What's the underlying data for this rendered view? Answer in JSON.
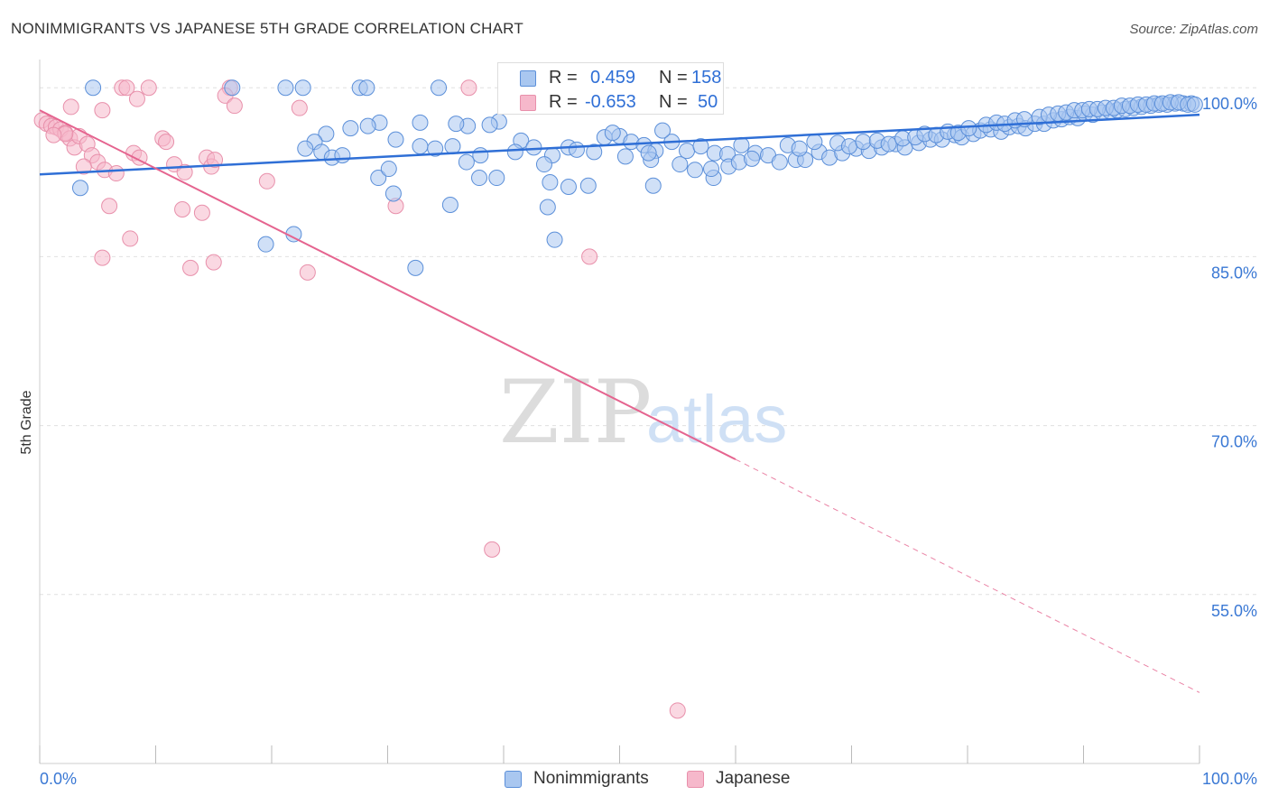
{
  "title": "NONIMMIGRANTS VS JAPANESE 5TH GRADE CORRELATION CHART",
  "source": "Source: ZipAtlas.com",
  "watermark": {
    "zip": "ZIP",
    "atlas": "atlas"
  },
  "legend_top": {
    "rows": [
      {
        "r_label": "R =",
        "r_value": "0.459",
        "n_label": "N =",
        "n_value": "158"
      },
      {
        "r_label": "R =",
        "r_value": "-0.653",
        "n_label": "N =",
        "n_value": "50"
      }
    ]
  },
  "legend_bottom": {
    "items": [
      "Nonimmigrants",
      "Japanese"
    ]
  },
  "colors": {
    "blue_fill": "#a9c7f0",
    "blue_stroke": "#5b8fd9",
    "blue_line": "#2f6fd6",
    "pink_fill": "#f6b8cb",
    "pink_stroke": "#e890ab",
    "pink_line": "#e5648f",
    "tick_text": "#3a78d4",
    "grid": "#e0e0e0"
  },
  "chart_data": {
    "type": "scatter",
    "title": "NONIMMIGRANTS VS JAPANESE 5TH GRADE CORRELATION CHART",
    "xlabel": "",
    "ylabel": "5th Grade",
    "xlim": [
      0,
      100
    ],
    "ylim": [
      40,
      102.5
    ],
    "x_tick_labels": [
      "0.0%",
      "100.0%"
    ],
    "y_ticks": [
      100,
      85,
      70,
      55
    ],
    "y_tick_labels": [
      "100.0%",
      "85.0%",
      "70.0%",
      "55.0%"
    ],
    "grid": true,
    "legend_position": "bottom",
    "series": [
      {
        "name": "Nonimmigrants",
        "r": 0.459,
        "n": 158,
        "trend": {
          "x0": 0,
          "y0": 92.3,
          "x1": 100,
          "y1": 97.6
        },
        "points": [
          [
            4.6,
            100
          ],
          [
            16.6,
            100
          ],
          [
            21.2,
            100
          ],
          [
            22.7,
            100
          ],
          [
            27.6,
            100
          ],
          [
            28.2,
            100
          ],
          [
            34.4,
            100
          ],
          [
            39.6,
            97.0
          ],
          [
            38.8,
            96.7
          ],
          [
            36.9,
            96.6
          ],
          [
            35.9,
            96.8
          ],
          [
            32.8,
            96.9
          ],
          [
            29.3,
            96.9
          ],
          [
            28.3,
            96.6
          ],
          [
            26.8,
            96.4
          ],
          [
            24.7,
            95.9
          ],
          [
            23.7,
            95.2
          ],
          [
            22.9,
            94.6
          ],
          [
            24.3,
            94.3
          ],
          [
            25.2,
            93.8
          ],
          [
            26.1,
            94.0
          ],
          [
            30.7,
            95.4
          ],
          [
            32.8,
            94.8
          ],
          [
            34.1,
            94.6
          ],
          [
            35.6,
            94.8
          ],
          [
            38.0,
            94.0
          ],
          [
            41.5,
            95.3
          ],
          [
            42.6,
            94.7
          ],
          [
            44.2,
            94.0
          ],
          [
            45.6,
            94.7
          ],
          [
            48.7,
            95.6
          ],
          [
            50.0,
            95.7
          ],
          [
            51.0,
            95.2
          ],
          [
            49.4,
            96.0
          ],
          [
            52.1,
            94.9
          ],
          [
            53.1,
            94.4
          ],
          [
            54.5,
            95.2
          ],
          [
            55.8,
            94.4
          ],
          [
            57.0,
            94.8
          ],
          [
            58.2,
            94.2
          ],
          [
            59.3,
            94.1
          ],
          [
            60.5,
            94.9
          ],
          [
            61.7,
            94.2
          ],
          [
            62.8,
            94.0
          ],
          [
            63.8,
            93.4
          ],
          [
            65.2,
            93.6
          ],
          [
            66.0,
            93.6
          ],
          [
            67.2,
            94.3
          ],
          [
            68.1,
            93.8
          ],
          [
            69.2,
            94.2
          ],
          [
            70.4,
            94.6
          ],
          [
            71.5,
            94.4
          ],
          [
            72.6,
            94.7
          ],
          [
            73.8,
            95.0
          ],
          [
            74.6,
            94.7
          ],
          [
            75.8,
            95.1
          ],
          [
            76.8,
            95.4
          ],
          [
            77.8,
            95.4
          ],
          [
            78.9,
            95.8
          ],
          [
            79.5,
            95.6
          ],
          [
            80.5,
            95.9
          ],
          [
            81.1,
            96.2
          ],
          [
            82.0,
            96.3
          ],
          [
            82.9,
            96.1
          ],
          [
            83.6,
            96.5
          ],
          [
            84.4,
            96.6
          ],
          [
            85.0,
            96.4
          ],
          [
            85.8,
            96.8
          ],
          [
            86.6,
            96.8
          ],
          [
            87.4,
            97.1
          ],
          [
            88.1,
            97.2
          ],
          [
            88.8,
            97.4
          ],
          [
            89.5,
            97.3
          ],
          [
            90.1,
            97.7
          ],
          [
            90.8,
            97.6
          ],
          [
            91.6,
            97.8
          ],
          [
            92.3,
            97.9
          ],
          [
            92.9,
            98.0
          ],
          [
            93.6,
            98.1
          ],
          [
            94.3,
            98.2
          ],
          [
            95.0,
            98.3
          ],
          [
            95.8,
            98.4
          ],
          [
            96.5,
            98.5
          ],
          [
            97.2,
            98.5
          ],
          [
            97.9,
            98.6
          ],
          [
            98.6,
            98.6
          ],
          [
            99.3,
            98.6
          ],
          [
            3.5,
            91.1
          ],
          [
            19.5,
            86.1
          ],
          [
            21.9,
            87.0
          ],
          [
            29.2,
            92.0
          ],
          [
            30.5,
            90.6
          ],
          [
            32.4,
            84.0
          ],
          [
            35.4,
            89.6
          ],
          [
            37.9,
            92.0
          ],
          [
            39.4,
            92.0
          ],
          [
            43.8,
            89.4
          ],
          [
            44.4,
            86.5
          ],
          [
            44.0,
            91.6
          ],
          [
            45.6,
            91.2
          ],
          [
            47.3,
            91.3
          ],
          [
            52.9,
            91.3
          ],
          [
            58.1,
            92.0
          ],
          [
            50.5,
            93.9
          ],
          [
            52.7,
            93.6
          ],
          [
            55.2,
            93.2
          ],
          [
            56.5,
            92.7
          ],
          [
            57.9,
            92.8
          ],
          [
            59.4,
            93.0
          ],
          [
            60.3,
            93.4
          ],
          [
            61.4,
            93.7
          ],
          [
            53.7,
            96.2
          ],
          [
            52.5,
            94.2
          ],
          [
            47.8,
            94.3
          ],
          [
            46.3,
            94.5
          ],
          [
            43.5,
            93.2
          ],
          [
            41.0,
            94.3
          ],
          [
            36.8,
            93.4
          ],
          [
            30.1,
            92.8
          ],
          [
            64.5,
            94.9
          ],
          [
            65.5,
            94.6
          ],
          [
            66.8,
            95.2
          ],
          [
            68.8,
            95.1
          ],
          [
            69.8,
            94.8
          ],
          [
            71.0,
            95.2
          ],
          [
            72.2,
            95.3
          ],
          [
            73.2,
            95.0
          ],
          [
            74.4,
            95.5
          ],
          [
            75.5,
            95.6
          ],
          [
            76.3,
            95.9
          ],
          [
            77.3,
            95.8
          ],
          [
            78.3,
            96.1
          ],
          [
            79.2,
            96.0
          ],
          [
            80.1,
            96.4
          ],
          [
            81.6,
            96.7
          ],
          [
            82.5,
            96.9
          ],
          [
            83.2,
            96.8
          ],
          [
            84.1,
            97.1
          ],
          [
            84.9,
            97.2
          ],
          [
            86.2,
            97.4
          ],
          [
            87.0,
            97.6
          ],
          [
            87.8,
            97.7
          ],
          [
            88.5,
            97.8
          ],
          [
            89.2,
            98.0
          ],
          [
            89.9,
            98.0
          ],
          [
            90.5,
            98.1
          ],
          [
            91.2,
            98.1
          ],
          [
            91.9,
            98.2
          ],
          [
            92.6,
            98.2
          ],
          [
            93.3,
            98.4
          ],
          [
            94.0,
            98.4
          ],
          [
            94.7,
            98.5
          ],
          [
            95.4,
            98.5
          ],
          [
            96.1,
            98.6
          ],
          [
            96.8,
            98.6
          ],
          [
            97.5,
            98.7
          ],
          [
            98.2,
            98.7
          ],
          [
            99.0,
            98.5
          ],
          [
            99.6,
            98.5
          ]
        ]
      },
      {
        "name": "Japanese",
        "r": -0.653,
        "n": 50,
        "trend": {
          "x0": 0,
          "y0": 98.0,
          "x1": 60,
          "y1": 67.0,
          "dashed_to": {
            "x": 100,
            "y": 46.3
          }
        },
        "points": [
          [
            7.1,
            100
          ],
          [
            7.5,
            100
          ],
          [
            9.4,
            100
          ],
          [
            16.4,
            100
          ],
          [
            37.0,
            100
          ],
          [
            0.2,
            97.1
          ],
          [
            0.6,
            96.8
          ],
          [
            1.0,
            96.6
          ],
          [
            1.4,
            96.5
          ],
          [
            1.8,
            96.3
          ],
          [
            2.2,
            96.0
          ],
          [
            2.6,
            95.5
          ],
          [
            3.0,
            94.7
          ],
          [
            2.7,
            98.3
          ],
          [
            5.4,
            98.0
          ],
          [
            8.4,
            99.0
          ],
          [
            16.0,
            99.3
          ],
          [
            16.8,
            98.4
          ],
          [
            22.4,
            98.2
          ],
          [
            3.4,
            95.7
          ],
          [
            4.1,
            95.0
          ],
          [
            4.5,
            94.0
          ],
          [
            5.0,
            93.4
          ],
          [
            5.6,
            92.7
          ],
          [
            6.6,
            92.4
          ],
          [
            8.1,
            94.2
          ],
          [
            8.6,
            93.8
          ],
          [
            10.6,
            95.5
          ],
          [
            10.9,
            95.2
          ],
          [
            11.6,
            93.2
          ],
          [
            12.5,
            92.5
          ],
          [
            14.4,
            93.8
          ],
          [
            14.8,
            93.0
          ],
          [
            15.1,
            93.6
          ],
          [
            6.0,
            89.5
          ],
          [
            12.3,
            89.2
          ],
          [
            14.0,
            88.9
          ],
          [
            19.6,
            91.7
          ],
          [
            30.7,
            89.5
          ],
          [
            5.4,
            84.9
          ],
          [
            7.8,
            86.6
          ],
          [
            13.0,
            84.0
          ],
          [
            15.0,
            84.5
          ],
          [
            23.1,
            83.6
          ],
          [
            47.4,
            85.0
          ],
          [
            39.0,
            59.0
          ],
          [
            55.0,
            44.7
          ],
          [
            2.2,
            95.9
          ],
          [
            3.8,
            93.0
          ],
          [
            1.2,
            95.8
          ]
        ]
      }
    ]
  }
}
